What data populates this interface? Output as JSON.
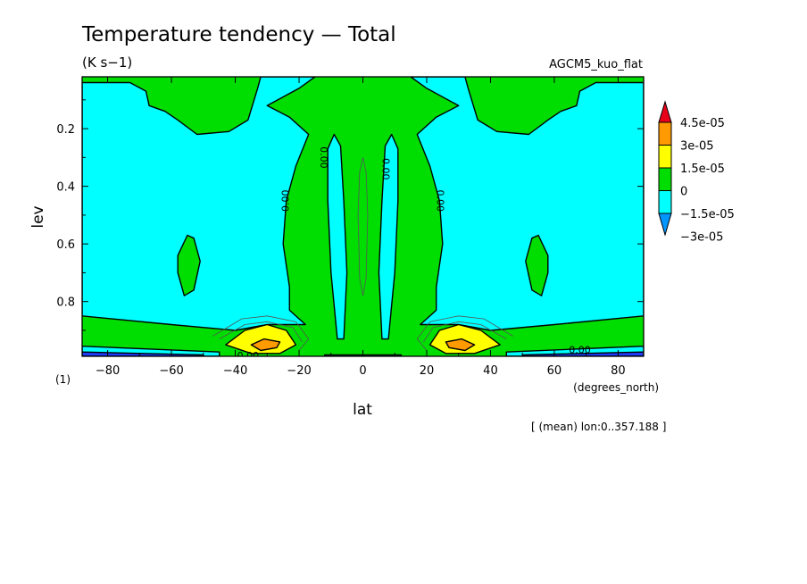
{
  "chart_data": {
    "type": "heatmap",
    "title": "Temperature tendency — Total",
    "units": "(K s−1)",
    "experiment": "AGCM5_kuo_flat",
    "xlabel": "lat",
    "ylabel": "lev",
    "x_units": "(degrees_north)",
    "subtitle_note": "[ (mean) lon:0..357.188 ]",
    "panel_index": "(1)",
    "xlim": [
      -88,
      88
    ],
    "ylim": [
      0.02,
      0.99
    ],
    "y_inverted": true,
    "x_ticks": [
      -80,
      -60,
      -40,
      -20,
      0,
      20,
      40,
      60,
      80
    ],
    "x_tick_labels": [
      "−80",
      "−60",
      "−40",
      "−20",
      "0",
      "20",
      "40",
      "60",
      "80"
    ],
    "y_ticks": [
      0.2,
      0.4,
      0.6,
      0.8
    ],
    "y_tick_labels": [
      "0.2",
      "0.4",
      "0.6",
      "0.8"
    ],
    "contour_label": "0.00",
    "levels": [
      {
        "label": "4.5e-05",
        "color": "#e8001a"
      },
      {
        "label": "3e-05",
        "color": "#ff9b00"
      },
      {
        "label": "1.5e-05",
        "color": "#ffff00"
      },
      {
        "label": "0",
        "color": "#00dd00"
      },
      {
        "label": "−1.5e-05",
        "color": "#00ffff"
      },
      {
        "label": "−3e-05",
        "color": "#0096ff"
      }
    ],
    "bottom_color": "#1e3cff",
    "regions": [
      {
        "fill": "cyan",
        "points": [
          [
            -88,
            0.26
          ],
          [
            -88,
            0.04
          ],
          [
            -73,
            0.04
          ],
          [
            -68,
            0.07
          ],
          [
            -67,
            0.12
          ],
          [
            -62,
            0.14
          ],
          [
            -58,
            0.17
          ],
          [
            -52,
            0.22
          ],
          [
            -42,
            0.21
          ],
          [
            -36,
            0.17
          ],
          [
            -33,
            0.06
          ],
          [
            -32,
            0.02
          ],
          [
            -15,
            0.02
          ],
          [
            -20,
            0.06
          ],
          [
            -30,
            0.12
          ],
          [
            -23,
            0.16
          ],
          [
            -17,
            0.22
          ],
          [
            -21,
            0.33
          ],
          [
            -24,
            0.45
          ],
          [
            -25,
            0.6
          ],
          [
            -23,
            0.75
          ],
          [
            -23,
            0.83
          ],
          [
            -18,
            0.88
          ],
          [
            -30,
            0.88
          ],
          [
            -40,
            0.9
          ],
          [
            -60,
            0.88
          ],
          [
            -88,
            0.85
          ]
        ]
      },
      {
        "fill": "cyan",
        "points": [
          [
            88,
            0.26
          ],
          [
            88,
            0.04
          ],
          [
            73,
            0.04
          ],
          [
            68,
            0.07
          ],
          [
            67,
            0.12
          ],
          [
            62,
            0.14
          ],
          [
            58,
            0.17
          ],
          [
            52,
            0.22
          ],
          [
            42,
            0.21
          ],
          [
            36,
            0.17
          ],
          [
            33,
            0.06
          ],
          [
            32,
            0.02
          ],
          [
            15,
            0.02
          ],
          [
            20,
            0.06
          ],
          [
            30,
            0.12
          ],
          [
            23,
            0.16
          ],
          [
            17,
            0.22
          ],
          [
            21,
            0.33
          ],
          [
            24,
            0.45
          ],
          [
            25,
            0.6
          ],
          [
            23,
            0.75
          ],
          [
            23,
            0.83
          ],
          [
            18,
            0.88
          ],
          [
            30,
            0.88
          ],
          [
            40,
            0.9
          ],
          [
            60,
            0.88
          ],
          [
            88,
            0.85
          ]
        ]
      },
      {
        "fill": "cyan",
        "points": [
          [
            -11,
            0.27
          ],
          [
            -9,
            0.22
          ],
          [
            -7,
            0.26
          ],
          [
            -6,
            0.45
          ],
          [
            -5,
            0.7
          ],
          [
            -6,
            0.93
          ],
          [
            -8,
            0.93
          ],
          [
            -10,
            0.7
          ],
          [
            -11,
            0.45
          ]
        ]
      },
      {
        "fill": "cyan",
        "points": [
          [
            11,
            0.27
          ],
          [
            9,
            0.22
          ],
          [
            7,
            0.26
          ],
          [
            6,
            0.45
          ],
          [
            5,
            0.7
          ],
          [
            6,
            0.93
          ],
          [
            8,
            0.93
          ],
          [
            10,
            0.7
          ],
          [
            11,
            0.45
          ]
        ]
      },
      {
        "fill": "green",
        "points": [
          [
            -55,
            0.57
          ],
          [
            -53,
            0.58
          ],
          [
            -51,
            0.66
          ],
          [
            -53,
            0.76
          ],
          [
            -56,
            0.78
          ],
          [
            -58,
            0.7
          ],
          [
            -58,
            0.64
          ]
        ]
      },
      {
        "fill": "green",
        "points": [
          [
            55,
            0.57
          ],
          [
            53,
            0.58
          ],
          [
            51,
            0.66
          ],
          [
            53,
            0.76
          ],
          [
            56,
            0.78
          ],
          [
            58,
            0.7
          ],
          [
            58,
            0.64
          ]
        ]
      },
      {
        "fill": "yellow",
        "points": [
          [
            -43,
            0.95
          ],
          [
            -37,
            0.9
          ],
          [
            -30,
            0.88
          ],
          [
            -24,
            0.9
          ],
          [
            -21,
            0.95
          ],
          [
            -26,
            0.98
          ],
          [
            -35,
            0.98
          ]
        ]
      },
      {
        "fill": "yellow",
        "points": [
          [
            43,
            0.95
          ],
          [
            37,
            0.9
          ],
          [
            30,
            0.88
          ],
          [
            24,
            0.9
          ],
          [
            21,
            0.95
          ],
          [
            26,
            0.98
          ],
          [
            35,
            0.98
          ]
        ]
      },
      {
        "fill": "orange",
        "points": [
          [
            -35,
            0.95
          ],
          [
            -31,
            0.93
          ],
          [
            -26,
            0.94
          ],
          [
            -27,
            0.96
          ],
          [
            -32,
            0.97
          ]
        ]
      },
      {
        "fill": "orange",
        "points": [
          [
            35,
            0.95
          ],
          [
            31,
            0.93
          ],
          [
            26,
            0.94
          ],
          [
            27,
            0.96
          ],
          [
            32,
            0.97
          ]
        ]
      },
      {
        "fill": "cyan",
        "points": [
          [
            -88,
            0.955
          ],
          [
            -45,
            0.975
          ],
          [
            -45,
            0.99
          ],
          [
            -88,
            0.99
          ]
        ]
      },
      {
        "fill": "cyan",
        "points": [
          [
            88,
            0.955
          ],
          [
            45,
            0.975
          ],
          [
            45,
            0.99
          ],
          [
            88,
            0.99
          ]
        ]
      },
      {
        "fill": "cyan",
        "points": [
          [
            -12,
            0.985
          ],
          [
            12,
            0.985
          ],
          [
            12,
            0.99
          ],
          [
            -12,
            0.99
          ]
        ]
      },
      {
        "fill": "blue",
        "points": [
          [
            -88,
            0.975
          ],
          [
            -50,
            0.985
          ],
          [
            -50,
            0.99
          ],
          [
            -88,
            0.99
          ]
        ]
      },
      {
        "fill": "blue",
        "points": [
          [
            88,
            0.975
          ],
          [
            50,
            0.985
          ],
          [
            50,
            0.99
          ],
          [
            88,
            0.99
          ]
        ]
      }
    ],
    "contour_lines": [
      [
        [
          -1,
          0.35
        ],
        [
          -1.5,
          0.5
        ],
        [
          -1,
          0.72
        ],
        [
          0,
          0.78
        ],
        [
          1,
          0.72
        ],
        [
          1.5,
          0.5
        ],
        [
          1,
          0.35
        ],
        [
          0,
          0.3
        ],
        [
          -1,
          0.35
        ]
      ],
      [
        [
          -47,
          0.92
        ],
        [
          -38,
          0.86
        ],
        [
          -30,
          0.85
        ],
        [
          -21,
          0.87
        ],
        [
          -17,
          0.93
        ],
        [
          -20,
          0.97
        ]
      ],
      [
        [
          47,
          0.92
        ],
        [
          38,
          0.86
        ],
        [
          30,
          0.85
        ],
        [
          21,
          0.87
        ],
        [
          17,
          0.93
        ],
        [
          20,
          0.97
        ]
      ],
      [
        [
          -45,
          0.93
        ],
        [
          -37,
          0.88
        ],
        [
          -30,
          0.87
        ],
        [
          -22,
          0.89
        ],
        [
          -19,
          0.94
        ]
      ],
      [
        [
          45,
          0.93
        ],
        [
          37,
          0.88
        ],
        [
          30,
          0.87
        ],
        [
          22,
          0.89
        ],
        [
          19,
          0.94
        ]
      ]
    ],
    "contour_labels": [
      {
        "x": -24,
        "y": 0.45,
        "angle": -90
      },
      {
        "x": -12.5,
        "y": 0.3,
        "angle": 90
      },
      {
        "x": 7,
        "y": 0.34,
        "angle": 90
      },
      {
        "x": 24,
        "y": 0.45,
        "angle": 90
      },
      {
        "x": -36,
        "y": 0.99,
        "angle": 0
      },
      {
        "x": 68,
        "y": 0.97,
        "angle": 0
      }
    ]
  }
}
